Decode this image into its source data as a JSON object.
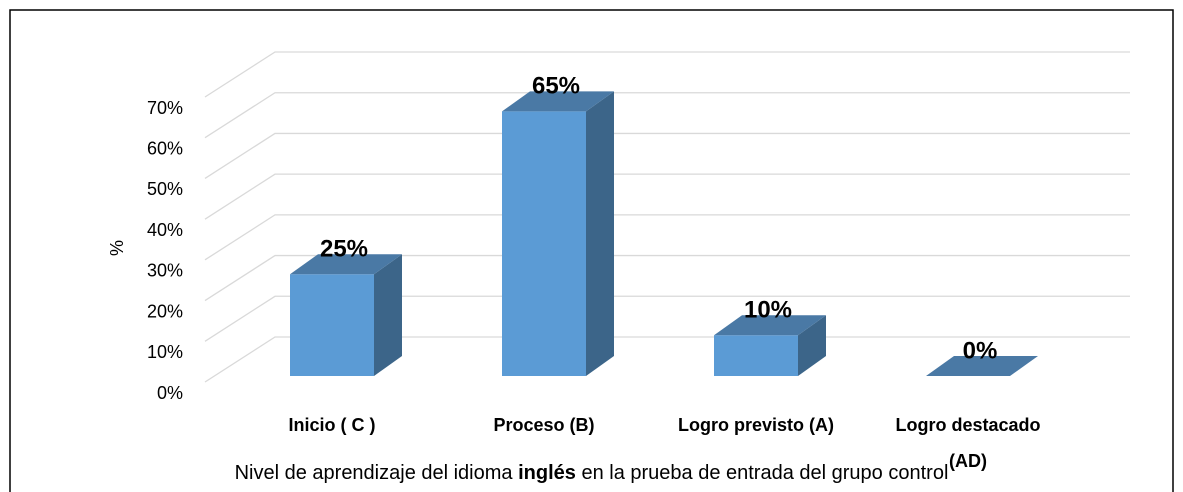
{
  "chart_data": {
    "type": "bar3d",
    "categories": [
      "Inicio ( C )",
      "Proceso (B)",
      "Logro previsto (A)",
      "Logro destacado (AD)"
    ],
    "values": [
      25,
      65,
      10,
      0
    ],
    "value_labels": [
      "25%",
      "65%",
      "10%",
      "0%"
    ],
    "color": "#5b9bd5",
    "y_label": "%",
    "x_label_parts": [
      "Nivel de aprendizaje del idioma ",
      "inglés",
      " en la prueba de entrada del grupo control"
    ],
    "ylim": [
      0,
      70
    ],
    "yticks": [
      {
        "value": 0,
        "label": "0%"
      },
      {
        "value": 10,
        "label": "10%"
      },
      {
        "value": 20,
        "label": "20%"
      },
      {
        "value": 30,
        "label": "30%"
      },
      {
        "value": 40,
        "label": "40%"
      },
      {
        "value": 50,
        "label": "50%"
      },
      {
        "value": 60,
        "label": "60%"
      },
      {
        "value": 70,
        "label": "70%"
      }
    ],
    "grid": true
  }
}
